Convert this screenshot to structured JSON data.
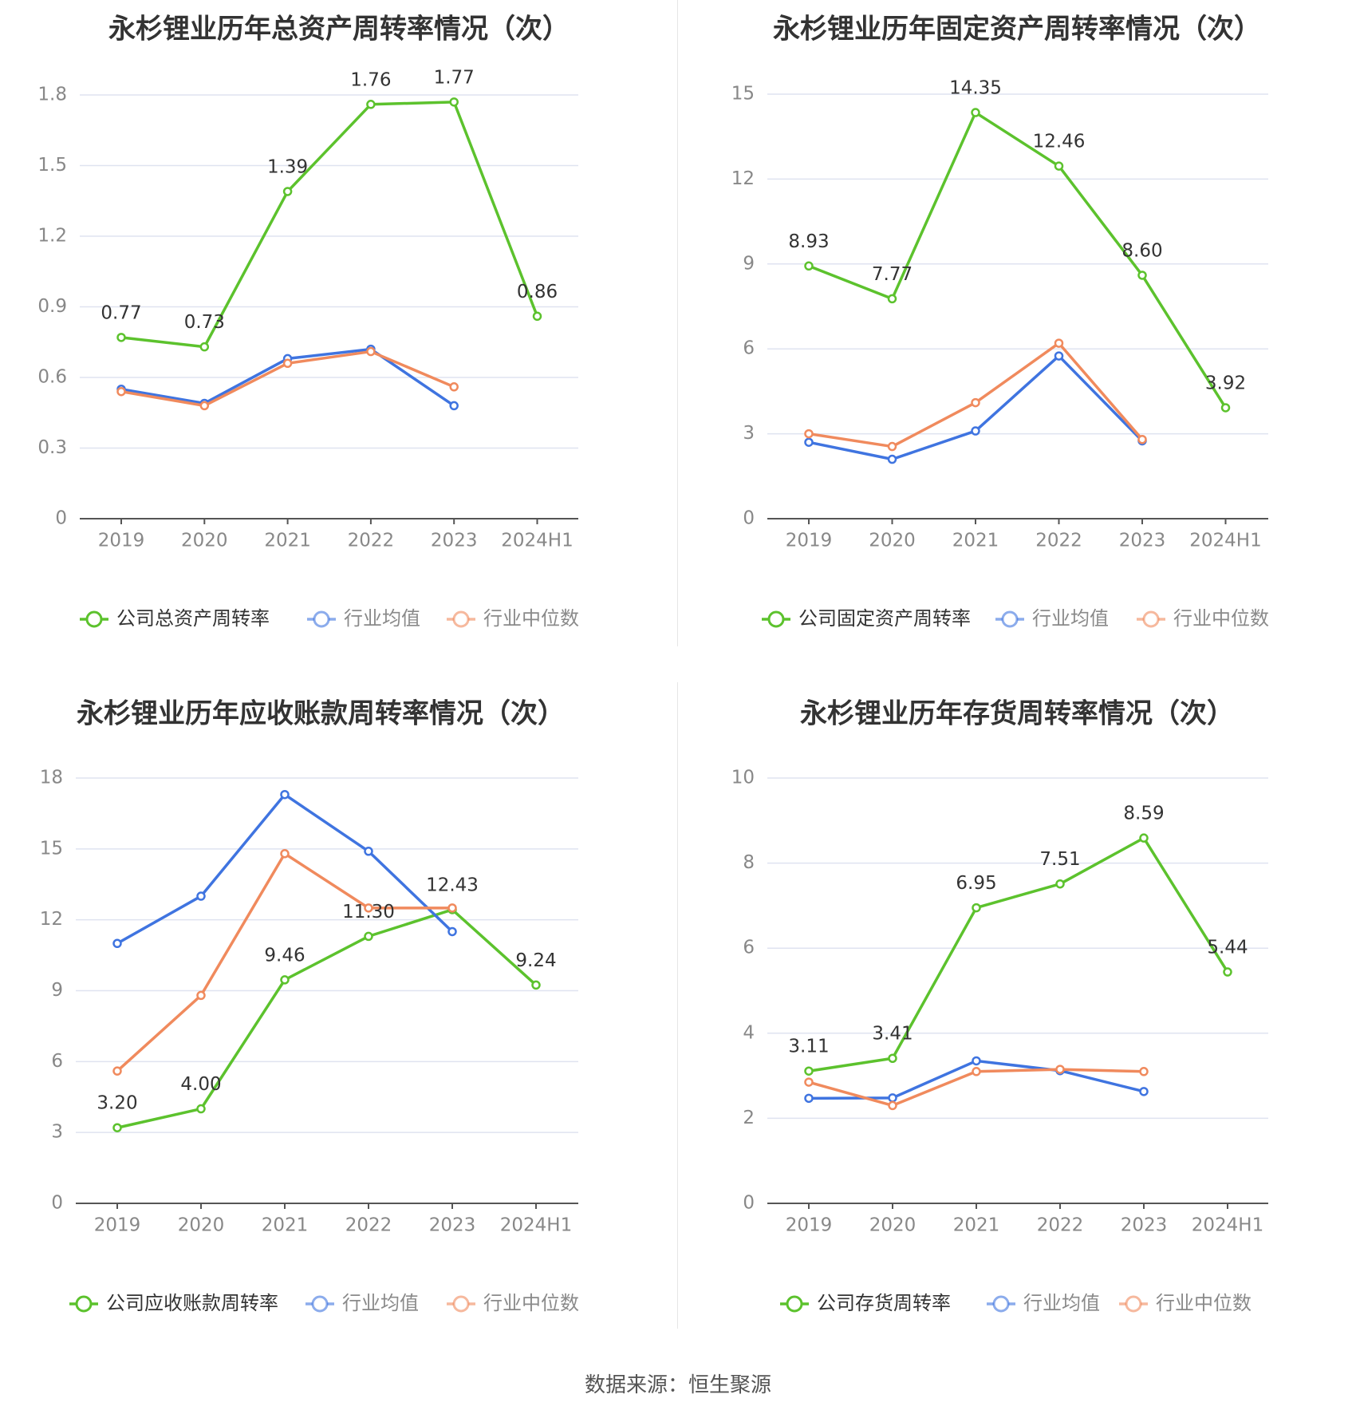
{
  "colors": {
    "company": "#5cc22d",
    "avg": "#3f74e0",
    "median": "#f08a5d",
    "grid": "#dfe3f0",
    "axis": "#555555",
    "tick": "#888888",
    "title": "#333333",
    "label": "#333333"
  },
  "source": "数据来源：恒生聚源",
  "chart_data": [
    {
      "type": "line",
      "title": "永杉锂业历年总资产周转率情况（次）",
      "categories": [
        "2019",
        "2020",
        "2021",
        "2022",
        "2023",
        "2024H1"
      ],
      "yticks": [
        "0",
        "0.3",
        "0.6",
        "0.9",
        "1.2",
        "1.5",
        "1.8"
      ],
      "ylim": [
        0,
        1.8
      ],
      "series": [
        {
          "name": "公司总资产周转率",
          "role": "company",
          "values": [
            0.77,
            0.73,
            1.39,
            1.76,
            1.77,
            0.86
          ],
          "labels": [
            "0.77",
            "0.73",
            "1.39",
            "1.76",
            "1.77",
            "0.86"
          ]
        },
        {
          "name": "行业均值",
          "role": "avg",
          "values": [
            0.55,
            0.49,
            0.68,
            0.72,
            0.48,
            null
          ]
        },
        {
          "name": "行业中位数",
          "role": "median",
          "values": [
            0.54,
            0.48,
            0.66,
            0.71,
            0.56,
            null
          ]
        }
      ]
    },
    {
      "type": "line",
      "title": "永杉锂业历年固定资产周转率情况（次）",
      "categories": [
        "2019",
        "2020",
        "2021",
        "2022",
        "2023",
        "2024H1"
      ],
      "yticks": [
        "0",
        "3",
        "6",
        "9",
        "12",
        "15"
      ],
      "ylim": [
        0,
        15
      ],
      "series": [
        {
          "name": "公司固定资产周转率",
          "role": "company",
          "values": [
            8.93,
            7.77,
            14.35,
            12.46,
            8.6,
            3.92
          ],
          "labels": [
            "8.93",
            "7.77",
            "14.35",
            "12.46",
            "8.60",
            "3.92"
          ]
        },
        {
          "name": "行业均值",
          "role": "avg",
          "values": [
            2.7,
            2.1,
            3.1,
            5.75,
            2.75,
            null
          ]
        },
        {
          "name": "行业中位数",
          "role": "median",
          "values": [
            3.0,
            2.55,
            4.1,
            6.2,
            2.8,
            null
          ]
        }
      ]
    },
    {
      "type": "line",
      "title": "永杉锂业历年应收账款周转率情况（次）",
      "categories": [
        "2019",
        "2020",
        "2021",
        "2022",
        "2023",
        "2024H1"
      ],
      "yticks": [
        "0",
        "3",
        "6",
        "9",
        "12",
        "15",
        "18"
      ],
      "ylim": [
        0,
        18
      ],
      "series": [
        {
          "name": "公司应收账款周转率",
          "role": "company",
          "values": [
            3.2,
            4.0,
            9.46,
            11.3,
            12.43,
            9.24
          ],
          "labels": [
            "3.20",
            "4.00",
            "9.46",
            "11.30",
            "12.43",
            "9.24"
          ]
        },
        {
          "name": "行业均值",
          "role": "avg",
          "values": [
            11.0,
            13.0,
            17.3,
            14.9,
            11.5,
            null
          ]
        },
        {
          "name": "行业中位数",
          "role": "median",
          "values": [
            5.6,
            8.8,
            14.8,
            12.5,
            12.5,
            null
          ]
        }
      ]
    },
    {
      "type": "line",
      "title": "永杉锂业历年存货周转率情况（次）",
      "categories": [
        "2019",
        "2020",
        "2021",
        "2022",
        "2023",
        "2024H1"
      ],
      "yticks": [
        "0",
        "2",
        "4",
        "6",
        "8",
        "10"
      ],
      "ylim": [
        0,
        10
      ],
      "series": [
        {
          "name": "公司存货周转率",
          "role": "company",
          "values": [
            3.11,
            3.41,
            6.95,
            7.51,
            8.59,
            5.44
          ],
          "labels": [
            "3.11",
            "3.41",
            "6.95",
            "7.51",
            "8.59",
            "5.44"
          ]
        },
        {
          "name": "行业均值",
          "role": "avg",
          "values": [
            2.47,
            2.48,
            3.35,
            3.12,
            2.63,
            null
          ]
        },
        {
          "name": "行业中位数",
          "role": "median",
          "values": [
            2.85,
            2.3,
            3.1,
            3.15,
            3.1,
            null
          ]
        }
      ]
    }
  ]
}
